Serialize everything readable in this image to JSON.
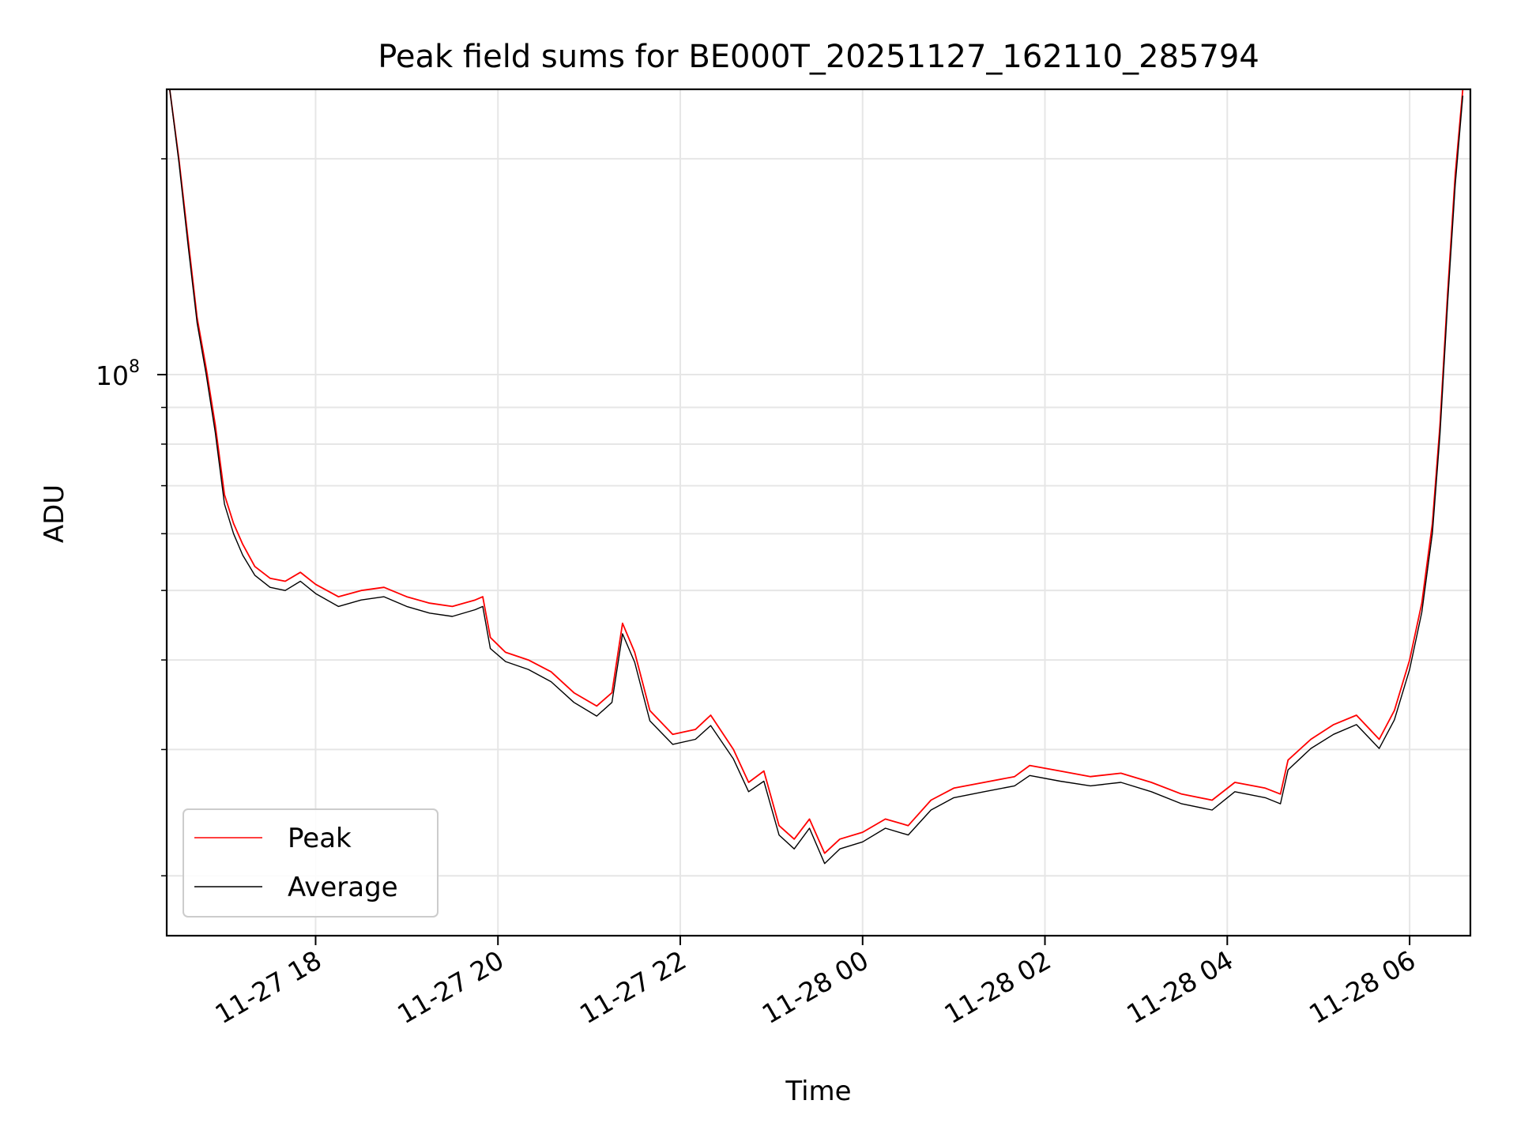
{
  "chart_data": {
    "type": "line",
    "title": "Peak field sums for BE000T_20251127_162110_285794",
    "xlabel": "Time",
    "ylabel": "ADU",
    "yscale": "log",
    "ylim": [
      16500000,
      250000000
    ],
    "xlim": [
      "2025-11-27 16:22",
      "2025-11-28 06:40"
    ],
    "grid": true,
    "legend_position": "lower-left",
    "x_ticks": [
      {
        "x": "2025-11-27 18:00",
        "label": "11-27 18"
      },
      {
        "x": "2025-11-27 20:00",
        "label": "11-27 20"
      },
      {
        "x": "2025-11-27 22:00",
        "label": "11-27 22"
      },
      {
        "x": "2025-11-28 00:00",
        "label": "11-28 00"
      },
      {
        "x": "2025-11-28 02:00",
        "label": "11-28 02"
      },
      {
        "x": "2025-11-28 04:00",
        "label": "11-28 04"
      },
      {
        "x": "2025-11-28 06:00",
        "label": "11-28 06"
      }
    ],
    "y_major_tick": {
      "y": 100000000,
      "base": "10",
      "exponent": "8"
    },
    "y_minor_ticks": [
      20000000,
      30000000,
      40000000,
      50000000,
      60000000,
      70000000,
      80000000,
      90000000,
      200000000
    ],
    "series": [
      {
        "name": "Peak",
        "color": "#ff0000",
        "points": [
          [
            "2025-11-27 16:24",
            250000000
          ],
          [
            "2025-11-27 16:30",
            200000000
          ],
          [
            "2025-11-27 16:36",
            155000000
          ],
          [
            "2025-11-27 16:42",
            120000000
          ],
          [
            "2025-11-27 16:48",
            102000000
          ],
          [
            "2025-11-27 16:54",
            85000000
          ],
          [
            "2025-11-27 17:00",
            68000000
          ],
          [
            "2025-11-27 17:06",
            62000000
          ],
          [
            "2025-11-27 17:12",
            58000000
          ],
          [
            "2025-11-27 17:20",
            54000000
          ],
          [
            "2025-11-27 17:30",
            52000000
          ],
          [
            "2025-11-27 17:40",
            51500000
          ],
          [
            "2025-11-27 17:50",
            53000000
          ],
          [
            "2025-11-27 18:00",
            51000000
          ],
          [
            "2025-11-27 18:15",
            49000000
          ],
          [
            "2025-11-27 18:30",
            50000000
          ],
          [
            "2025-11-27 18:45",
            50500000
          ],
          [
            "2025-11-27 19:00",
            49000000
          ],
          [
            "2025-11-27 19:15",
            48000000
          ],
          [
            "2025-11-27 19:30",
            47500000
          ],
          [
            "2025-11-27 19:45",
            48500000
          ],
          [
            "2025-11-27 19:50",
            49000000
          ],
          [
            "2025-11-27 19:55",
            43000000
          ],
          [
            "2025-11-27 20:05",
            41000000
          ],
          [
            "2025-11-27 20:20",
            40000000
          ],
          [
            "2025-11-27 20:35",
            38500000
          ],
          [
            "2025-11-27 20:50",
            36000000
          ],
          [
            "2025-11-27 21:05",
            34500000
          ],
          [
            "2025-11-27 21:15",
            36000000
          ],
          [
            "2025-11-27 21:22",
            45000000
          ],
          [
            "2025-11-27 21:30",
            41000000
          ],
          [
            "2025-11-27 21:40",
            34000000
          ],
          [
            "2025-11-27 21:55",
            31500000
          ],
          [
            "2025-11-27 22:10",
            32000000
          ],
          [
            "2025-11-27 22:20",
            33500000
          ],
          [
            "2025-11-27 22:35",
            30000000
          ],
          [
            "2025-11-27 22:45",
            27000000
          ],
          [
            "2025-11-27 22:55",
            28000000
          ],
          [
            "2025-11-27 23:05",
            23500000
          ],
          [
            "2025-11-27 23:15",
            22500000
          ],
          [
            "2025-11-27 23:25",
            24000000
          ],
          [
            "2025-11-27 23:35",
            21500000
          ],
          [
            "2025-11-27 23:45",
            22500000
          ],
          [
            "2025-11-28 00:00",
            23000000
          ],
          [
            "2025-11-28 00:15",
            24000000
          ],
          [
            "2025-11-28 00:30",
            23500000
          ],
          [
            "2025-11-28 00:45",
            25500000
          ],
          [
            "2025-11-28 01:00",
            26500000
          ],
          [
            "2025-11-28 01:20",
            27000000
          ],
          [
            "2025-11-28 01:40",
            27500000
          ],
          [
            "2025-11-28 01:50",
            28500000
          ],
          [
            "2025-11-28 02:10",
            28000000
          ],
          [
            "2025-11-28 02:30",
            27500000
          ],
          [
            "2025-11-28 02:50",
            27800000
          ],
          [
            "2025-11-28 03:10",
            27000000
          ],
          [
            "2025-11-28 03:30",
            26000000
          ],
          [
            "2025-11-28 03:50",
            25500000
          ],
          [
            "2025-11-28 04:05",
            27000000
          ],
          [
            "2025-11-28 04:25",
            26500000
          ],
          [
            "2025-11-28 04:35",
            26000000
          ],
          [
            "2025-11-28 04:40",
            29000000
          ],
          [
            "2025-11-28 04:55",
            31000000
          ],
          [
            "2025-11-28 05:10",
            32500000
          ],
          [
            "2025-11-28 05:25",
            33500000
          ],
          [
            "2025-11-28 05:40",
            31000000
          ],
          [
            "2025-11-28 05:50",
            34000000
          ],
          [
            "2025-11-28 06:00",
            40000000
          ],
          [
            "2025-11-28 06:08",
            48000000
          ],
          [
            "2025-11-28 06:15",
            62000000
          ],
          [
            "2025-11-28 06:20",
            85000000
          ],
          [
            "2025-11-28 06:25",
            130000000
          ],
          [
            "2025-11-28 06:30",
            190000000
          ],
          [
            "2025-11-28 06:35",
            250000000
          ]
        ]
      },
      {
        "name": "Average",
        "color": "#000000",
        "points": [
          [
            "2025-11-27 16:24",
            250000000
          ],
          [
            "2025-11-27 16:30",
            198000000
          ],
          [
            "2025-11-27 16:36",
            152000000
          ],
          [
            "2025-11-27 16:42",
            118000000
          ],
          [
            "2025-11-27 16:48",
            100000000
          ],
          [
            "2025-11-27 16:54",
            83000000
          ],
          [
            "2025-11-27 17:00",
            66000000
          ],
          [
            "2025-11-27 17:06",
            60000000
          ],
          [
            "2025-11-27 17:12",
            56000000
          ],
          [
            "2025-11-27 17:20",
            52500000
          ],
          [
            "2025-11-27 17:30",
            50500000
          ],
          [
            "2025-11-27 17:40",
            50000000
          ],
          [
            "2025-11-27 17:50",
            51500000
          ],
          [
            "2025-11-27 18:00",
            49500000
          ],
          [
            "2025-11-27 18:15",
            47500000
          ],
          [
            "2025-11-27 18:30",
            48500000
          ],
          [
            "2025-11-27 18:45",
            49000000
          ],
          [
            "2025-11-27 19:00",
            47500000
          ],
          [
            "2025-11-27 19:15",
            46500000
          ],
          [
            "2025-11-27 19:30",
            46000000
          ],
          [
            "2025-11-27 19:45",
            47000000
          ],
          [
            "2025-11-27 19:50",
            47500000
          ],
          [
            "2025-11-27 19:55",
            41500000
          ],
          [
            "2025-11-27 20:05",
            39800000
          ],
          [
            "2025-11-27 20:20",
            38800000
          ],
          [
            "2025-11-27 20:35",
            37300000
          ],
          [
            "2025-11-27 20:50",
            34900000
          ],
          [
            "2025-11-27 21:05",
            33400000
          ],
          [
            "2025-11-27 21:15",
            34900000
          ],
          [
            "2025-11-27 21:22",
            43500000
          ],
          [
            "2025-11-27 21:30",
            39700000
          ],
          [
            "2025-11-27 21:40",
            32900000
          ],
          [
            "2025-11-27 21:55",
            30500000
          ],
          [
            "2025-11-27 22:10",
            31000000
          ],
          [
            "2025-11-27 22:20",
            32400000
          ],
          [
            "2025-11-27 22:35",
            29100000
          ],
          [
            "2025-11-27 22:45",
            26200000
          ],
          [
            "2025-11-27 22:55",
            27100000
          ],
          [
            "2025-11-27 23:05",
            22800000
          ],
          [
            "2025-11-27 23:15",
            21800000
          ],
          [
            "2025-11-27 23:25",
            23300000
          ],
          [
            "2025-11-27 23:35",
            20800000
          ],
          [
            "2025-11-27 23:45",
            21800000
          ],
          [
            "2025-11-28 00:00",
            22300000
          ],
          [
            "2025-11-28 00:15",
            23300000
          ],
          [
            "2025-11-28 00:30",
            22800000
          ],
          [
            "2025-11-28 00:45",
            24700000
          ],
          [
            "2025-11-28 01:00",
            25700000
          ],
          [
            "2025-11-28 01:20",
            26200000
          ],
          [
            "2025-11-28 01:40",
            26700000
          ],
          [
            "2025-11-28 01:50",
            27600000
          ],
          [
            "2025-11-28 02:10",
            27100000
          ],
          [
            "2025-11-28 02:30",
            26700000
          ],
          [
            "2025-11-28 02:50",
            27000000
          ],
          [
            "2025-11-28 03:10",
            26200000
          ],
          [
            "2025-11-28 03:30",
            25200000
          ],
          [
            "2025-11-28 03:50",
            24700000
          ],
          [
            "2025-11-28 04:05",
            26200000
          ],
          [
            "2025-11-28 04:25",
            25700000
          ],
          [
            "2025-11-28 04:35",
            25200000
          ],
          [
            "2025-11-28 04:40",
            28100000
          ],
          [
            "2025-11-28 04:55",
            30100000
          ],
          [
            "2025-11-28 05:10",
            31500000
          ],
          [
            "2025-11-28 05:25",
            32500000
          ],
          [
            "2025-11-28 05:40",
            30100000
          ],
          [
            "2025-11-28 05:50",
            33000000
          ],
          [
            "2025-11-28 06:00",
            38800000
          ],
          [
            "2025-11-28 06:08",
            46600000
          ],
          [
            "2025-11-28 06:15",
            60100000
          ],
          [
            "2025-11-28 06:20",
            82500000
          ],
          [
            "2025-11-28 06:25",
            126000000
          ],
          [
            "2025-11-28 06:30",
            184000000
          ],
          [
            "2025-11-28 06:35",
            245000000
          ]
        ]
      }
    ]
  }
}
